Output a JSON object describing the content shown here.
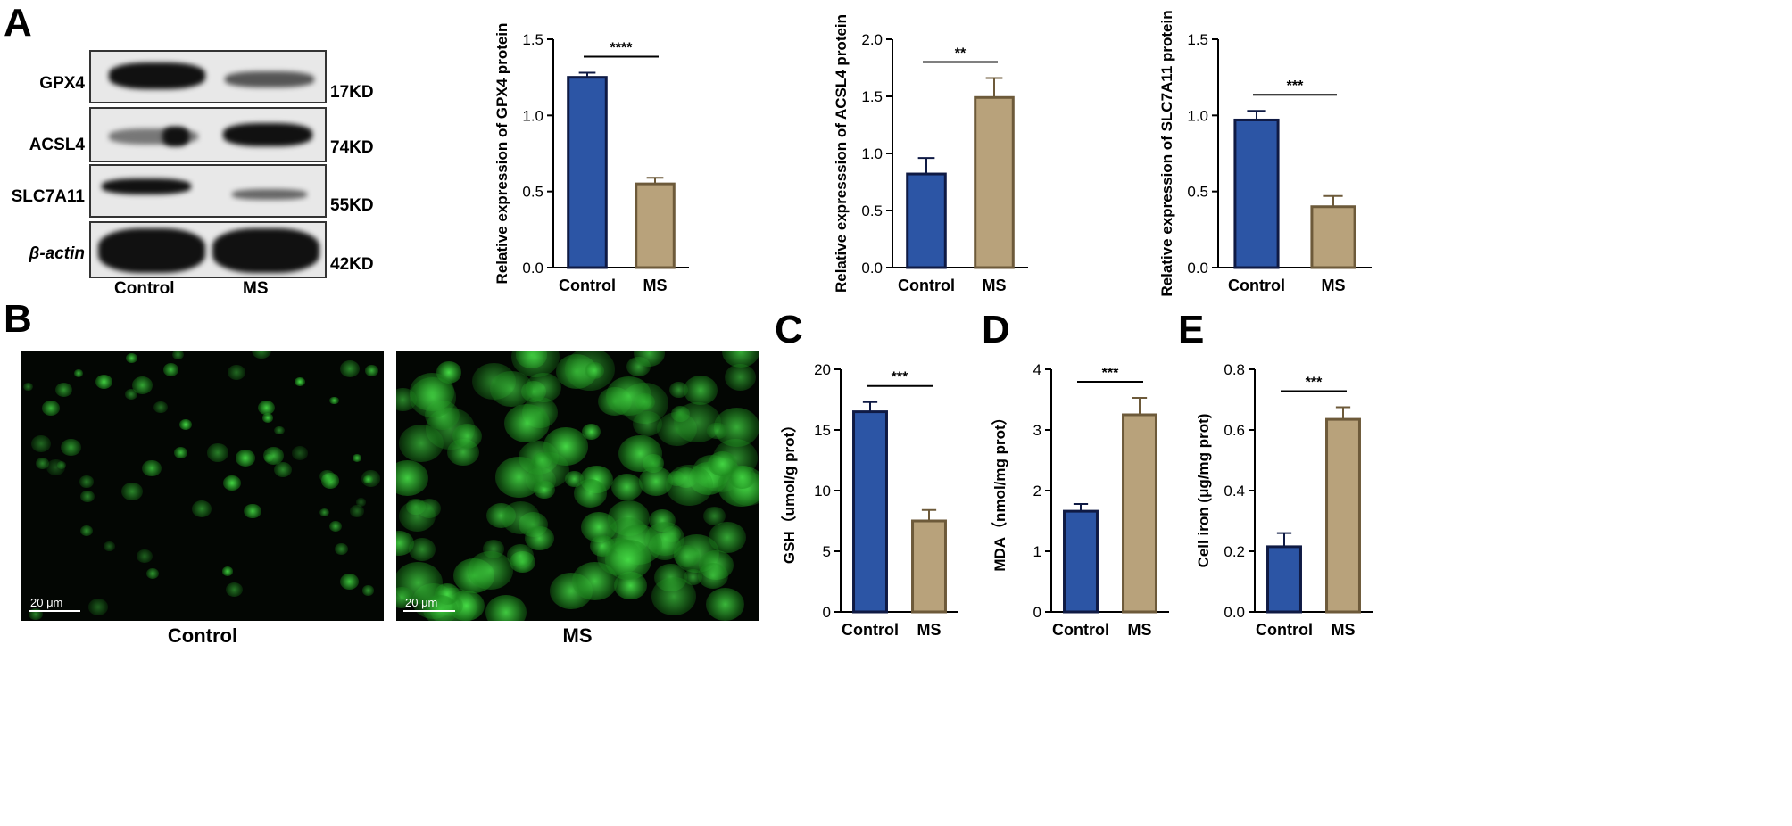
{
  "panels": {
    "a": "A",
    "b": "B",
    "c": "C",
    "d": "D",
    "e": "E"
  },
  "western_blot": {
    "proteins": [
      {
        "name": "GPX4",
        "kd": "17KD"
      },
      {
        "name": "ACSL4",
        "kd": "74KD"
      },
      {
        "name": "SLC7A11",
        "kd": "55KD"
      },
      {
        "name": "β-actin",
        "kd": "42KD"
      }
    ],
    "lanes": [
      "Control",
      "MS"
    ]
  },
  "micrographs": {
    "scale_label": "20 μm",
    "captions": [
      "Control",
      "MS"
    ],
    "colors": {
      "fluorescence": "#2fd02f",
      "background": "#030603"
    }
  },
  "colors": {
    "control": "#2c55a5",
    "ms": "#b8a27b",
    "control_edge": "#0f1a44",
    "ms_edge": "#6d5a3a"
  },
  "chart_data": [
    {
      "id": "gpx4",
      "type": "bar",
      "categories": [
        "Control",
        "MS"
      ],
      "values": [
        1.25,
        0.55
      ],
      "errors": [
        0.03,
        0.04
      ],
      "ylabel": "Relative expression of GPX4 protein",
      "ylim": [
        0,
        1.5
      ],
      "yticks": [
        "0.0",
        "0.5",
        "1.0",
        "1.5"
      ],
      "significance": "****"
    },
    {
      "id": "acsl4",
      "type": "bar",
      "categories": [
        "Control",
        "MS"
      ],
      "values": [
        0.82,
        1.49
      ],
      "errors": [
        0.14,
        0.17
      ],
      "ylabel": "Relative expresssion of ACSL4 protein",
      "ylim": [
        0,
        2.0
      ],
      "yticks": [
        "0.0",
        "0.5",
        "1.0",
        "1.5",
        "2.0"
      ],
      "significance": "**"
    },
    {
      "id": "slc7a11",
      "type": "bar",
      "categories": [
        "Control",
        "MS"
      ],
      "values": [
        0.97,
        0.4
      ],
      "errors": [
        0.06,
        0.07
      ],
      "ylabel": "Relative expression of SLC7A11 protein",
      "ylim": [
        0,
        1.5
      ],
      "yticks": [
        "0.0",
        "0.5",
        "1.0",
        "1.5"
      ],
      "significance": "***"
    },
    {
      "id": "gsh",
      "type": "bar",
      "categories": [
        "Control",
        "MS"
      ],
      "values": [
        16.5,
        7.5
      ],
      "errors": [
        0.8,
        0.9
      ],
      "ylabel": "GSH（umol/g prot）",
      "ylim": [
        0,
        20
      ],
      "yticks": [
        "0",
        "5",
        "10",
        "15",
        "20"
      ],
      "significance": "***"
    },
    {
      "id": "mda",
      "type": "bar",
      "categories": [
        "Control",
        "MS"
      ],
      "values": [
        1.66,
        3.25
      ],
      "errors": [
        0.12,
        0.28
      ],
      "ylabel": "MDA（nmol/mg prot）",
      "ylim": [
        0,
        4
      ],
      "yticks": [
        "0",
        "1",
        "2",
        "3",
        "4"
      ],
      "significance": "***"
    },
    {
      "id": "iron",
      "type": "bar",
      "categories": [
        "Control",
        "MS"
      ],
      "values": [
        0.215,
        0.635
      ],
      "errors": [
        0.045,
        0.04
      ],
      "ylabel": "Cell iron (μg/mg prot)",
      "ylim": [
        0,
        0.8
      ],
      "yticks": [
        "0.0",
        "0.2",
        "0.4",
        "0.6",
        "0.8"
      ],
      "significance": "***"
    }
  ]
}
